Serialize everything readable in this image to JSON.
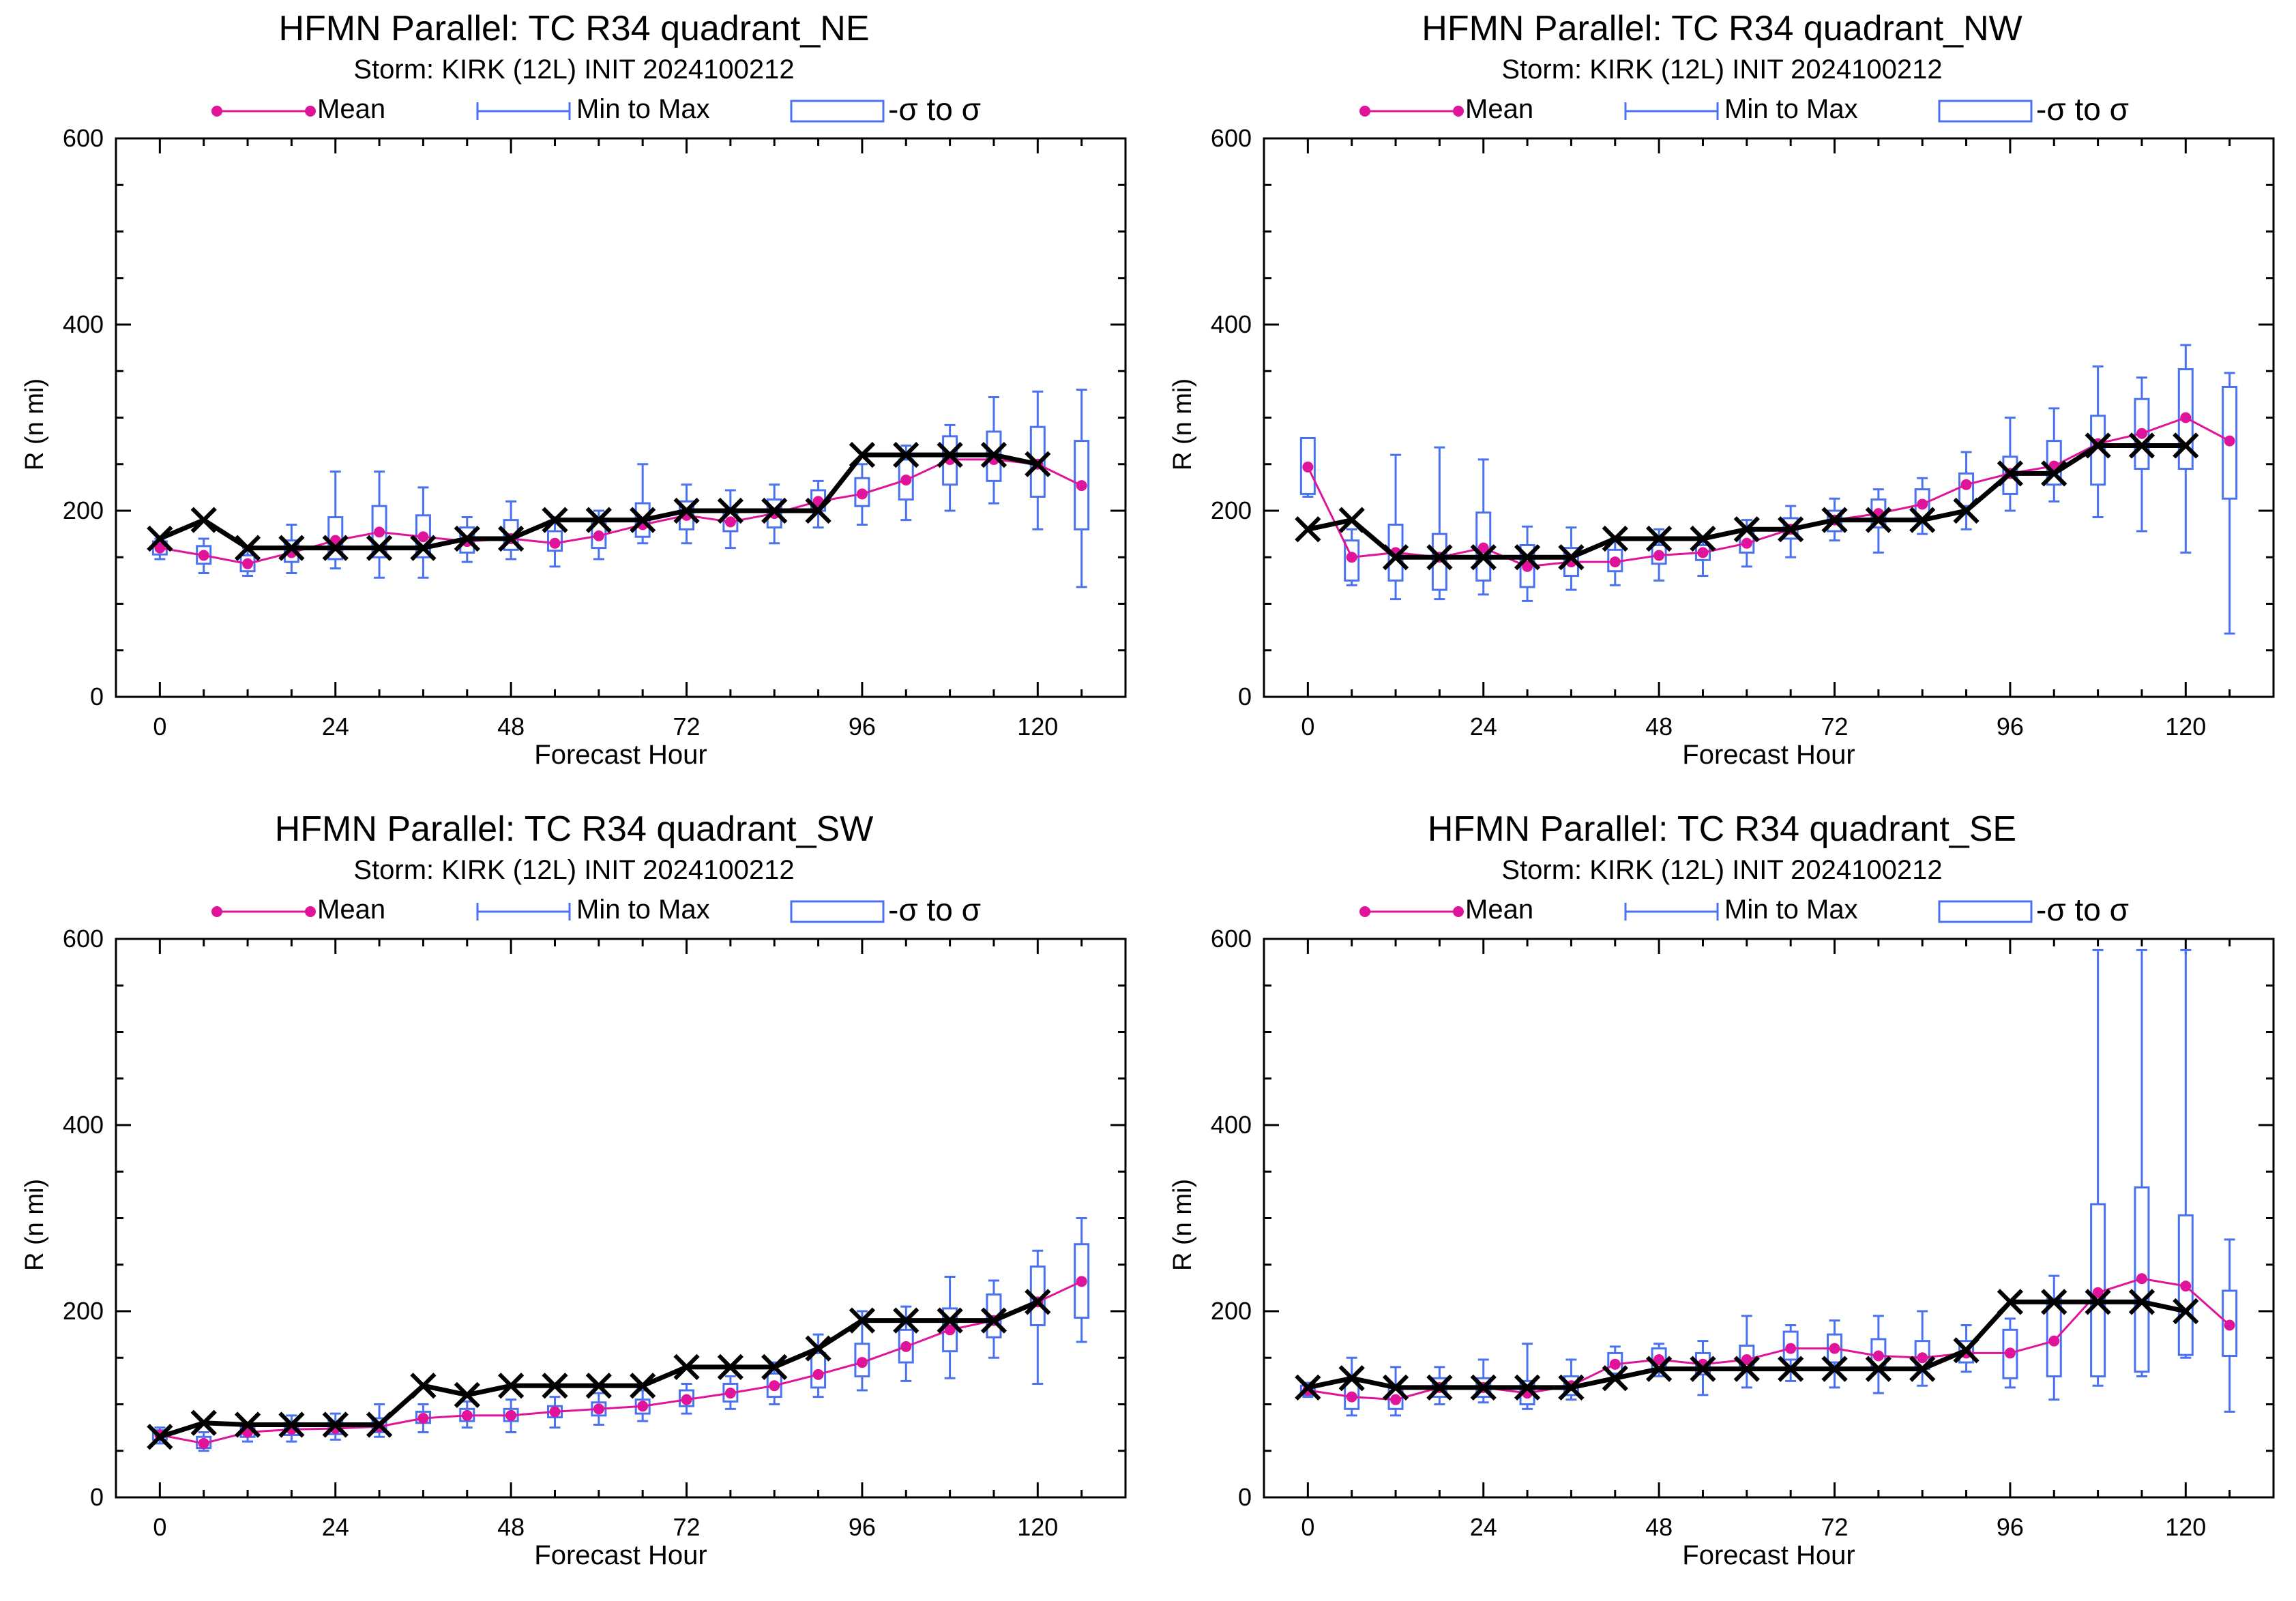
{
  "colors": {
    "mean": "#e0149a",
    "box": "#4a72f0",
    "track": "#000000",
    "frame": "#000000"
  },
  "legend": {
    "mean_label": "Mean",
    "minmax_label": "Min to Max",
    "sigma_label": "-σ to σ"
  },
  "chart_data": [
    {
      "type": "box",
      "title": "HFMN Parallel: TC  R34 quadrant_NE",
      "subtitle": "Storm: KIRK (12L) INIT 2024100212",
      "xlabel": "Forecast Hour",
      "ylabel": "R (n mi)",
      "xlim": [
        -6,
        132
      ],
      "ylim": [
        0,
        600
      ],
      "xticks": [
        0,
        24,
        48,
        72,
        96,
        120
      ],
      "yticks": [
        0,
        200,
        400,
        600
      ],
      "hours": [
        0,
        6,
        12,
        18,
        24,
        30,
        36,
        42,
        48,
        54,
        60,
        66,
        72,
        78,
        84,
        90,
        96,
        102,
        108,
        114,
        120,
        126
      ],
      "mean": [
        160,
        152,
        143,
        155,
        168,
        177,
        172,
        167,
        170,
        165,
        173,
        185,
        195,
        188,
        197,
        210,
        218,
        233,
        255,
        255,
        250,
        227
      ],
      "min": [
        148,
        133,
        130,
        133,
        138,
        128,
        128,
        145,
        148,
        140,
        148,
        165,
        165,
        160,
        165,
        182,
        185,
        190,
        200,
        208,
        180,
        118
      ],
      "max": [
        170,
        170,
        160,
        185,
        242,
        242,
        225,
        193,
        210,
        193,
        200,
        250,
        228,
        222,
        228,
        232,
        250,
        270,
        292,
        322,
        328,
        330
      ],
      "sigma_low": [
        153,
        143,
        135,
        145,
        148,
        150,
        150,
        155,
        158,
        157,
        160,
        172,
        180,
        178,
        182,
        200,
        205,
        212,
        228,
        232,
        215,
        180
      ],
      "sigma_high": [
        167,
        162,
        152,
        168,
        193,
        205,
        195,
        182,
        190,
        178,
        188,
        208,
        210,
        200,
        212,
        222,
        235,
        255,
        280,
        285,
        290,
        275
      ],
      "track_hours": [
        0,
        6,
        12,
        18,
        24,
        30,
        36,
        42,
        48,
        54,
        60,
        66,
        72,
        78,
        84,
        90,
        96,
        102,
        108,
        114,
        120
      ],
      "track": [
        170,
        190,
        160,
        160,
        160,
        160,
        160,
        170,
        170,
        190,
        190,
        190,
        200,
        200,
        200,
        200,
        260,
        260,
        260,
        260,
        250
      ]
    },
    {
      "type": "box",
      "title": "HFMN Parallel: TC  R34 quadrant_NW",
      "subtitle": "Storm: KIRK (12L) INIT 2024100212",
      "xlabel": "Forecast Hour",
      "ylabel": "R (n mi)",
      "xlim": [
        -6,
        132
      ],
      "ylim": [
        0,
        600
      ],
      "xticks": [
        0,
        24,
        48,
        72,
        96,
        120
      ],
      "yticks": [
        0,
        200,
        400,
        600
      ],
      "hours": [
        0,
        6,
        12,
        18,
        24,
        30,
        36,
        42,
        48,
        54,
        60,
        66,
        72,
        78,
        84,
        90,
        96,
        102,
        108,
        114,
        120,
        126
      ],
      "mean": [
        247,
        150,
        155,
        150,
        160,
        140,
        145,
        145,
        152,
        155,
        165,
        180,
        190,
        197,
        207,
        228,
        240,
        248,
        272,
        283,
        300,
        275
      ],
      "min": [
        215,
        120,
        105,
        105,
        110,
        103,
        115,
        120,
        125,
        130,
        140,
        150,
        168,
        155,
        175,
        180,
        200,
        210,
        193,
        178,
        155,
        68
      ],
      "max": [
        278,
        180,
        260,
        268,
        255,
        183,
        182,
        170,
        180,
        172,
        190,
        205,
        213,
        223,
        235,
        263,
        300,
        310,
        355,
        343,
        378,
        348
      ],
      "sigma_low": [
        218,
        125,
        125,
        115,
        125,
        118,
        130,
        135,
        143,
        147,
        155,
        170,
        178,
        182,
        192,
        205,
        218,
        228,
        228,
        245,
        245,
        213
      ],
      "sigma_high": [
        278,
        168,
        185,
        175,
        198,
        163,
        160,
        158,
        163,
        163,
        178,
        192,
        200,
        212,
        223,
        240,
        258,
        275,
        302,
        320,
        352,
        333
      ],
      "track_hours": [
        0,
        6,
        12,
        18,
        24,
        30,
        36,
        42,
        48,
        54,
        60,
        66,
        72,
        78,
        84,
        90,
        96,
        102,
        108,
        114,
        120
      ],
      "track": [
        180,
        190,
        150,
        150,
        150,
        150,
        150,
        170,
        170,
        170,
        180,
        180,
        190,
        190,
        190,
        200,
        240,
        240,
        270,
        270,
        270
      ]
    },
    {
      "type": "box",
      "title": "HFMN Parallel: TC  R34 quadrant_SW",
      "subtitle": "Storm: KIRK (12L) INIT 2024100212",
      "xlabel": "Forecast Hour",
      "ylabel": "R (n mi)",
      "xlim": [
        -6,
        132
      ],
      "ylim": [
        0,
        600
      ],
      "xticks": [
        0,
        24,
        48,
        72,
        96,
        120
      ],
      "yticks": [
        0,
        200,
        400,
        600
      ],
      "hours": [
        0,
        6,
        12,
        18,
        24,
        30,
        36,
        42,
        48,
        54,
        60,
        66,
        72,
        78,
        84,
        90,
        96,
        102,
        108,
        114,
        120,
        126
      ],
      "mean": [
        67,
        58,
        70,
        73,
        74,
        76,
        85,
        88,
        88,
        92,
        95,
        98,
        105,
        112,
        120,
        132,
        145,
        162,
        180,
        190,
        210,
        232
      ],
      "min": [
        58,
        50,
        60,
        60,
        62,
        65,
        70,
        75,
        70,
        75,
        78,
        82,
        90,
        95,
        100,
        108,
        115,
        125,
        128,
        150,
        122,
        167
      ],
      "max": [
        75,
        70,
        80,
        88,
        90,
        100,
        100,
        103,
        105,
        108,
        112,
        115,
        122,
        130,
        145,
        175,
        200,
        205,
        237,
        233,
        265,
        300
      ],
      "sigma_low": [
        62,
        53,
        65,
        67,
        68,
        70,
        80,
        82,
        82,
        86,
        88,
        90,
        98,
        103,
        108,
        118,
        130,
        145,
        157,
        172,
        185,
        193
      ],
      "sigma_high": [
        72,
        65,
        76,
        80,
        82,
        85,
        92,
        95,
        95,
        98,
        102,
        105,
        115,
        122,
        133,
        155,
        165,
        180,
        203,
        218,
        248,
        272
      ],
      "track_hours": [
        0,
        6,
        12,
        18,
        24,
        30,
        36,
        42,
        48,
        54,
        60,
        66,
        72,
        78,
        84,
        90,
        96,
        102,
        108,
        114,
        120
      ],
      "track": [
        65,
        80,
        78,
        78,
        78,
        78,
        120,
        110,
        120,
        120,
        120,
        120,
        140,
        140,
        140,
        160,
        190,
        190,
        190,
        190,
        210
      ]
    },
    {
      "type": "box",
      "title": "HFMN Parallel: TC  R34 quadrant_SE",
      "subtitle": "Storm: KIRK (12L) INIT 2024100212",
      "xlabel": "Forecast Hour",
      "ylabel": "R (n mi)",
      "xlim": [
        -6,
        132
      ],
      "ylim": [
        0,
        600
      ],
      "xticks": [
        0,
        24,
        48,
        72,
        96,
        120
      ],
      "yticks": [
        0,
        200,
        400,
        600
      ],
      "hours": [
        0,
        6,
        12,
        18,
        24,
        30,
        36,
        42,
        48,
        54,
        60,
        66,
        72,
        78,
        84,
        90,
        96,
        102,
        108,
        114,
        120,
        126
      ],
      "mean": [
        115,
        108,
        105,
        118,
        118,
        112,
        120,
        143,
        148,
        143,
        148,
        160,
        160,
        152,
        150,
        155,
        155,
        168,
        220,
        235,
        227,
        185
      ],
      "min": [
        108,
        88,
        88,
        100,
        102,
        95,
        105,
        125,
        130,
        110,
        118,
        125,
        118,
        112,
        120,
        135,
        118,
        105,
        120,
        130,
        150,
        92
      ],
      "max": [
        123,
        150,
        140,
        140,
        148,
        165,
        148,
        162,
        165,
        168,
        195,
        185,
        190,
        195,
        200,
        185,
        192,
        238,
        588,
        588,
        588,
        277
      ],
      "sigma_low": [
        110,
        95,
        95,
        108,
        108,
        100,
        110,
        133,
        138,
        132,
        138,
        148,
        145,
        138,
        138,
        145,
        128,
        130,
        130,
        135,
        153,
        152
      ],
      "sigma_high": [
        120,
        125,
        118,
        128,
        128,
        125,
        130,
        155,
        160,
        155,
        163,
        178,
        175,
        170,
        168,
        168,
        180,
        213,
        315,
        333,
        303,
        222
      ],
      "track_hours": [
        0,
        6,
        12,
        18,
        24,
        30,
        36,
        42,
        48,
        54,
        60,
        66,
        72,
        78,
        84,
        90,
        96,
        102,
        108,
        114,
        120
      ],
      "track": [
        118,
        128,
        118,
        118,
        118,
        118,
        118,
        128,
        138,
        138,
        138,
        138,
        138,
        138,
        138,
        158,
        210,
        210,
        210,
        210,
        200
      ]
    }
  ]
}
